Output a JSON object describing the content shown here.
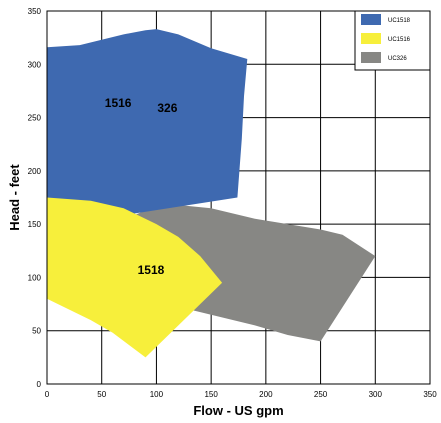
{
  "chart_data": {
    "type": "area",
    "xlabel": "Flow - US gpm",
    "ylabel": "Head - feet",
    "xlim": [
      0,
      350
    ],
    "ylim": [
      0,
      350
    ],
    "x_ticks": [
      0,
      50,
      100,
      150,
      200,
      250,
      300,
      350
    ],
    "y_ticks": [
      0,
      50,
      100,
      150,
      200,
      250,
      300,
      350
    ],
    "grid": true,
    "legend_position": "top-right",
    "legend": [
      {
        "name": "UC1518",
        "color": "#3E69B0"
      },
      {
        "name": "UC1516",
        "color": "#F7EF3B"
      },
      {
        "name": "UC326",
        "color": "#878784"
      }
    ],
    "series": [
      {
        "name": "326",
        "color": "#878784",
        "label_pos": [
          110,
          255
        ],
        "points": [
          [
            48,
            95
          ],
          [
            60,
            150
          ],
          [
            95,
            165
          ],
          [
            120,
            168
          ],
          [
            150,
            165
          ],
          [
            190,
            155
          ],
          [
            250,
            145
          ],
          [
            270,
            140
          ],
          [
            300,
            120
          ],
          [
            250,
            40
          ],
          [
            220,
            46
          ],
          [
            190,
            55
          ],
          [
            150,
            65
          ],
          [
            110,
            75
          ],
          [
            80,
            82
          ]
        ]
      },
      {
        "name": "1518",
        "color": "#3E69B0",
        "label_pos": [
          95,
          103
        ],
        "points": [
          [
            0,
            316
          ],
          [
            30,
            318
          ],
          [
            70,
            328
          ],
          [
            90,
            332
          ],
          [
            100,
            333
          ],
          [
            120,
            328
          ],
          [
            150,
            315
          ],
          [
            183,
            305
          ],
          [
            180,
            270
          ],
          [
            178,
            230
          ],
          [
            174,
            175
          ],
          [
            80,
            160
          ],
          [
            0,
            160
          ]
        ]
      },
      {
        "name": "1516",
        "color": "#F7EF3B",
        "label_pos": [
          65,
          260
        ],
        "points": [
          [
            0,
            175
          ],
          [
            40,
            172
          ],
          [
            70,
            165
          ],
          [
            100,
            150
          ],
          [
            120,
            138
          ],
          [
            140,
            120
          ],
          [
            160,
            95
          ],
          [
            130,
            65
          ],
          [
            90,
            25
          ],
          [
            60,
            48
          ],
          [
            40,
            60
          ],
          [
            0,
            80
          ]
        ]
      }
    ]
  }
}
